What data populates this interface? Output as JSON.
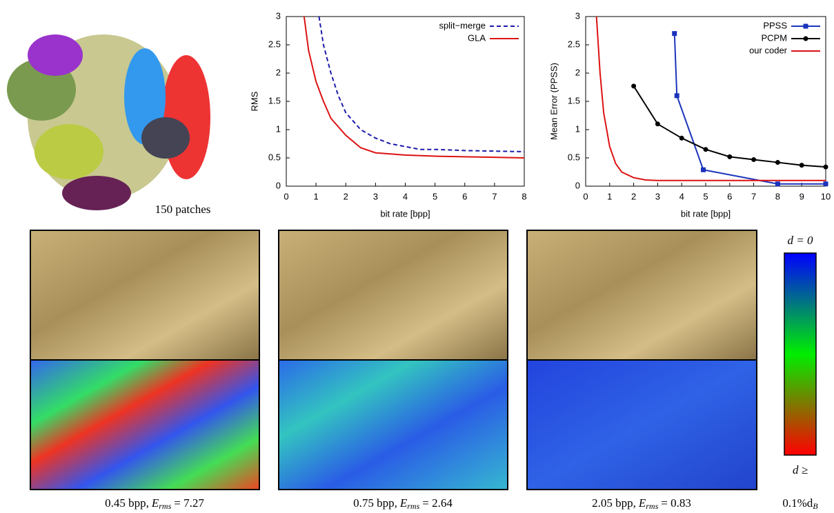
{
  "chart_data": [
    {
      "type": "line",
      "ylabel": "RMS",
      "xlabel": "bit rate [bpp]",
      "xlim": [
        0,
        8
      ],
      "xticks": [
        0,
        1,
        2,
        3,
        4,
        5,
        6,
        7,
        8
      ],
      "ylim": [
        0,
        3
      ],
      "yticks": [
        0,
        0.5,
        1,
        1.5,
        2,
        2.5,
        3
      ],
      "series": [
        {
          "name": "split−merge",
          "color": "#1a1aaa",
          "style": "dashed",
          "x": [
            1.1,
            1.25,
            1.5,
            1.75,
            2,
            2.5,
            3,
            3.5,
            4,
            4.5,
            5,
            6,
            7,
            8
          ],
          "values": [
            3.0,
            2.5,
            2.0,
            1.6,
            1.3,
            1.0,
            0.85,
            0.75,
            0.7,
            0.65,
            0.65,
            0.63,
            0.62,
            0.61
          ]
        },
        {
          "name": "GLA",
          "color": "#dd1111",
          "style": "solid",
          "x": [
            0.6,
            0.75,
            1,
            1.25,
            1.5,
            2,
            2.5,
            3,
            4,
            5,
            6,
            7,
            8
          ],
          "values": [
            3.0,
            2.4,
            1.85,
            1.5,
            1.2,
            0.9,
            0.68,
            0.59,
            0.55,
            0.53,
            0.52,
            0.51,
            0.5
          ]
        }
      ]
    },
    {
      "type": "line",
      "ylabel": "Mean Error (PPSS)",
      "xlabel": "bit rate [bpp]",
      "xlim": [
        0,
        10
      ],
      "xticks": [
        0,
        1,
        2,
        3,
        4,
        5,
        6,
        7,
        8,
        9,
        10
      ],
      "ylim": [
        0,
        3
      ],
      "yticks": [
        0,
        0.5,
        1,
        1.5,
        2,
        2.5,
        3
      ],
      "series": [
        {
          "name": "PPSS",
          "color": "#1a33bb",
          "style": "solid",
          "marker": "square",
          "x": [
            3.7,
            3.8,
            4.9,
            8,
            10
          ],
          "values": [
            2.7,
            1.6,
            0.29,
            0.04,
            0.04
          ]
        },
        {
          "name": "PCPM",
          "color": "#000000",
          "style": "solid",
          "marker": "circle",
          "x": [
            2,
            3,
            4,
            5,
            6,
            7,
            8,
            9,
            10
          ],
          "values": [
            1.77,
            1.1,
            0.85,
            0.65,
            0.52,
            0.47,
            0.42,
            0.37,
            0.34
          ]
        },
        {
          "name": "our coder",
          "color": "#dd1111",
          "style": "solid",
          "x": [
            0.45,
            0.6,
            0.75,
            1,
            1.25,
            1.5,
            2,
            2.5,
            3,
            5,
            10
          ],
          "values": [
            3.0,
            2.0,
            1.3,
            0.7,
            0.4,
            0.25,
            0.15,
            0.11,
            0.1,
            0.1,
            0.1
          ]
        }
      ]
    }
  ],
  "dragon_label": "150 patches",
  "captions": [
    {
      "rate": "0.45 bpp,",
      "symbol": "E",
      "subscript": "rms",
      "value": "= 7.27"
    },
    {
      "rate": "0.75 bpp,",
      "symbol": "E",
      "subscript": "rms",
      "value": "= 2.64"
    },
    {
      "rate": "2.05 bpp,",
      "symbol": "E",
      "subscript": "rms",
      "value": "= 0.83"
    }
  ],
  "colorbar": {
    "top": "d = 0",
    "bottom_line1": "d ≥",
    "bottom_line2": "0.1%d",
    "bottom_subscript": "B"
  }
}
